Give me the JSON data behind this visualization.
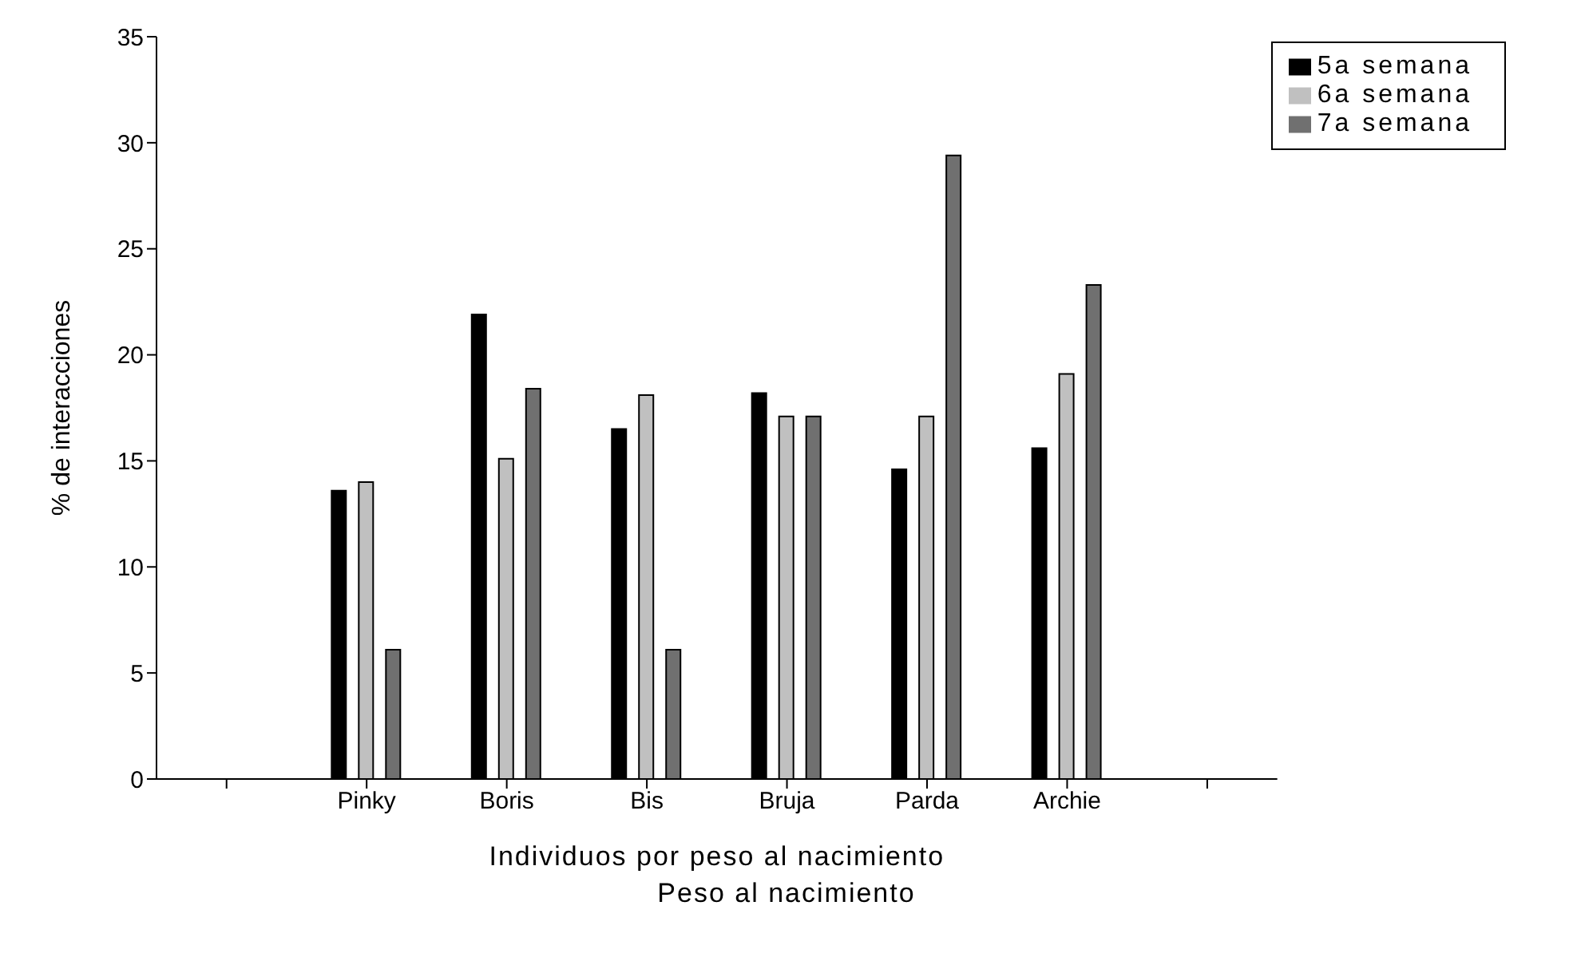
{
  "chart_data": {
    "type": "bar",
    "xlabel": "Individuos por peso al nacimiento",
    "ylabel": "% de interacciones",
    "annotations": [
      "Peso al nacimiento"
    ],
    "categories": [
      null,
      "Pinky",
      "Boris",
      "Bis",
      "Bruja",
      "Parda",
      "Archie",
      null
    ],
    "series": [
      {
        "name": "5a semana",
        "color": "#000000",
        "values": [
          null,
          13.6,
          21.9,
          16.5,
          18.2,
          14.6,
          15.6,
          null
        ]
      },
      {
        "name": "6a semana",
        "color": "#c0c0c0",
        "values": [
          null,
          14.0,
          15.1,
          18.1,
          17.1,
          17.1,
          19.1,
          null
        ]
      },
      {
        "name": "7a semana",
        "color": "#707070",
        "values": [
          null,
          6.1,
          18.4,
          6.1,
          17.1,
          29.4,
          23.3,
          null
        ]
      }
    ],
    "ylim": [
      0,
      35
    ],
    "yticks": [
      0,
      5,
      10,
      15,
      20,
      25,
      30,
      35
    ],
    "grid": false,
    "legend": "top right"
  }
}
